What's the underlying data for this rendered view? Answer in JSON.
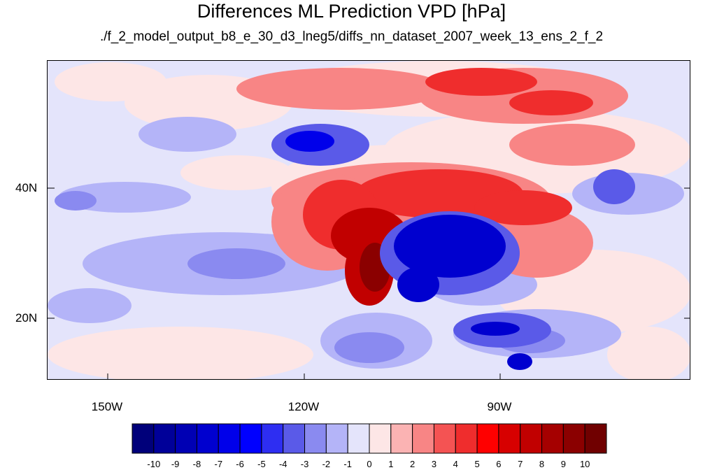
{
  "header": {
    "title": "Differences ML Prediction VPD [hPa]",
    "subtitle": "./f_2_model_output_b8_e_30_d3_lneg5/diffs_nn_dataset_2007_week_13_ens_2_f_2"
  },
  "axes": {
    "lat_labels": [
      "40N",
      "20N"
    ],
    "lon_labels": [
      "150W",
      "120W",
      "90W"
    ]
  },
  "colorbar": {
    "labels": [
      "-10",
      "-9",
      "-8",
      "-7",
      "-6",
      "-5",
      "-4",
      "-3",
      "-2",
      "-1",
      "0",
      "1",
      "2",
      "3",
      "4",
      "5",
      "6",
      "7",
      "8",
      "9",
      "10"
    ],
    "colors": [
      "#00007a",
      "#000099",
      "#0000b4",
      "#0000cf",
      "#0000ea",
      "#0000ff",
      "#2e2ef2",
      "#5a5ae8",
      "#8a8af0",
      "#b4b4f8",
      "#e4e4fb",
      "#fde6e6",
      "#fbb3b3",
      "#f88585",
      "#f45353",
      "#ef2d2d",
      "#ff0000",
      "#d70000",
      "#c10000",
      "#a50000",
      "#8b0000",
      "#700000"
    ]
  },
  "colors": {
    "ocean_base": "#e4e4fb",
    "light_blue": "#b4b4f8",
    "mid_blue": "#8a8af0",
    "deep_blue": "#0000cf",
    "light_red": "#fde6e6",
    "mid_red": "#f88585",
    "strong_red": "#ef2d2d",
    "dark_red": "#a50000",
    "border": "#000000"
  }
}
